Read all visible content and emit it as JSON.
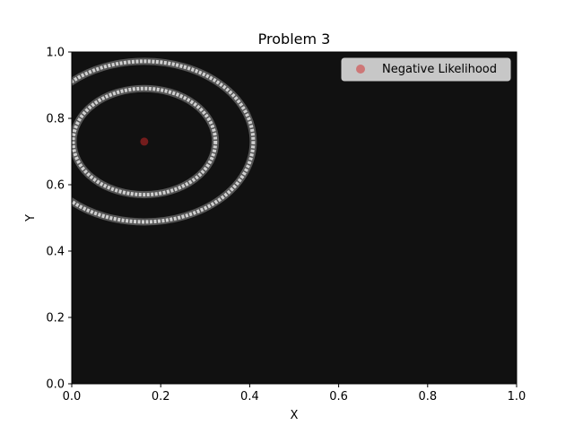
{
  "chart_data": {
    "type": "scatter",
    "title": "Problem 3",
    "xlabel": "X",
    "ylabel": "Y",
    "xlim": [
      0,
      1
    ],
    "ylim": [
      0,
      1
    ],
    "x_ticks": [
      "0.0",
      "0.2",
      "0.4",
      "0.6",
      "0.8",
      "1.0"
    ],
    "y_ticks": [
      "0.0",
      "0.2",
      "0.4",
      "0.6",
      "0.8",
      "1.0"
    ],
    "x_tick_values": [
      0,
      0.2,
      0.4,
      0.6,
      0.8,
      1.0
    ],
    "y_tick_values": [
      0,
      0.2,
      0.4,
      0.6,
      0.8,
      1.0
    ],
    "background_color": "#111111",
    "contours": [
      {
        "center": [
          0.163,
          0.73
        ],
        "rx": 0.16,
        "ry": 0.16
      },
      {
        "center": [
          0.163,
          0.73
        ],
        "rx": 0.245,
        "ry": 0.242
      }
    ],
    "contour_color": "#d0d0d0",
    "series": [
      {
        "name": "Negative Likelihood",
        "color": "#d62728",
        "points": [
          [
            0.163,
            0.73
          ]
        ]
      }
    ],
    "legend_position": "top-right",
    "grid": false
  }
}
